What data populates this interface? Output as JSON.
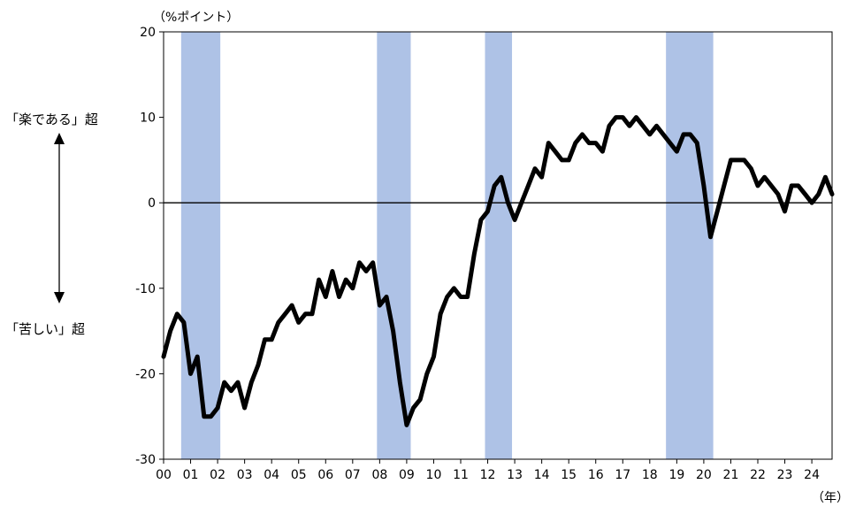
{
  "chart_data": {
    "type": "line",
    "y_unit_label": "（%ポイント）",
    "x_unit_label": "（年）",
    "annotation_top": "「楽である」超",
    "annotation_bottom": "「苦しい」超",
    "ylim": [
      -30,
      20
    ],
    "yticks": [
      20,
      10,
      0,
      -10,
      -20,
      -30
    ],
    "xlim": [
      2000,
      2024.75
    ],
    "xticks": [
      "00",
      "01",
      "02",
      "03",
      "04",
      "05",
      "06",
      "07",
      "08",
      "09",
      "10",
      "11",
      "12",
      "13",
      "14",
      "15",
      "16",
      "17",
      "18",
      "19",
      "20",
      "21",
      "22",
      "23",
      "24"
    ],
    "line_color": "#000000",
    "shade_color": "#aec2e6",
    "grid": false,
    "shaded_periods": [
      [
        2000.65,
        2002.1
      ],
      [
        2007.9,
        2009.15
      ],
      [
        2011.9,
        2012.9
      ],
      [
        2018.6,
        2020.35
      ]
    ],
    "series": [
      {
        "x": [
          2000.0,
          2000.25,
          2000.5,
          2000.75,
          2001.0,
          2001.25,
          2001.5,
          2001.75,
          2002.0,
          2002.25,
          2002.5,
          2002.75,
          2003.0,
          2003.25,
          2003.5,
          2003.75,
          2004.0,
          2004.25,
          2004.5,
          2004.75,
          2005.0,
          2005.25,
          2005.5,
          2005.75,
          2006.0,
          2006.25,
          2006.5,
          2006.75,
          2007.0,
          2007.25,
          2007.5,
          2007.75,
          2008.0,
          2008.25,
          2008.5,
          2008.75,
          2009.0,
          2009.25,
          2009.5,
          2009.75,
          2010.0,
          2010.25,
          2010.5,
          2010.75,
          2011.0,
          2011.25,
          2011.5,
          2011.75,
          2012.0,
          2012.25,
          2012.5,
          2012.75,
          2013.0,
          2013.25,
          2013.5,
          2013.75,
          2014.0,
          2014.25,
          2014.5,
          2014.75,
          2015.0,
          2015.25,
          2015.5,
          2015.75,
          2016.0,
          2016.25,
          2016.5,
          2016.75,
          2017.0,
          2017.25,
          2017.5,
          2017.75,
          2018.0,
          2018.25,
          2018.5,
          2018.75,
          2019.0,
          2019.25,
          2019.5,
          2019.75,
          2020.0,
          2020.25,
          2020.5,
          2020.75,
          2021.0,
          2021.25,
          2021.5,
          2021.75,
          2022.0,
          2022.25,
          2022.5,
          2022.75,
          2023.0,
          2023.25,
          2023.5,
          2023.75,
          2024.0,
          2024.25,
          2024.5,
          2024.75
        ],
        "values": [
          -18,
          -15,
          -13,
          -14,
          -20,
          -18,
          -25,
          -25,
          -24,
          -21,
          -22,
          -21,
          -24,
          -21,
          -19,
          -16,
          -16,
          -14,
          -13,
          -12,
          -14,
          -13,
          -13,
          -9,
          -11,
          -8,
          -11,
          -9,
          -10,
          -7,
          -8,
          -7,
          -12,
          -11,
          -15,
          -21,
          -26,
          -24,
          -23,
          -20,
          -18,
          -13,
          -11,
          -10,
          -11,
          -11,
          -6,
          -2,
          -1,
          2,
          3,
          0,
          -2,
          0,
          2,
          4,
          3,
          7,
          6,
          5,
          5,
          7,
          8,
          7,
          7,
          6,
          9,
          10,
          10,
          9,
          10,
          9,
          8,
          9,
          8,
          7,
          6,
          8,
          8,
          7,
          2,
          -4,
          -1,
          2,
          5,
          5,
          5,
          4,
          2,
          3,
          2,
          1,
          -1,
          2,
          2,
          1,
          0,
          1,
          3,
          1
        ]
      }
    ]
  }
}
